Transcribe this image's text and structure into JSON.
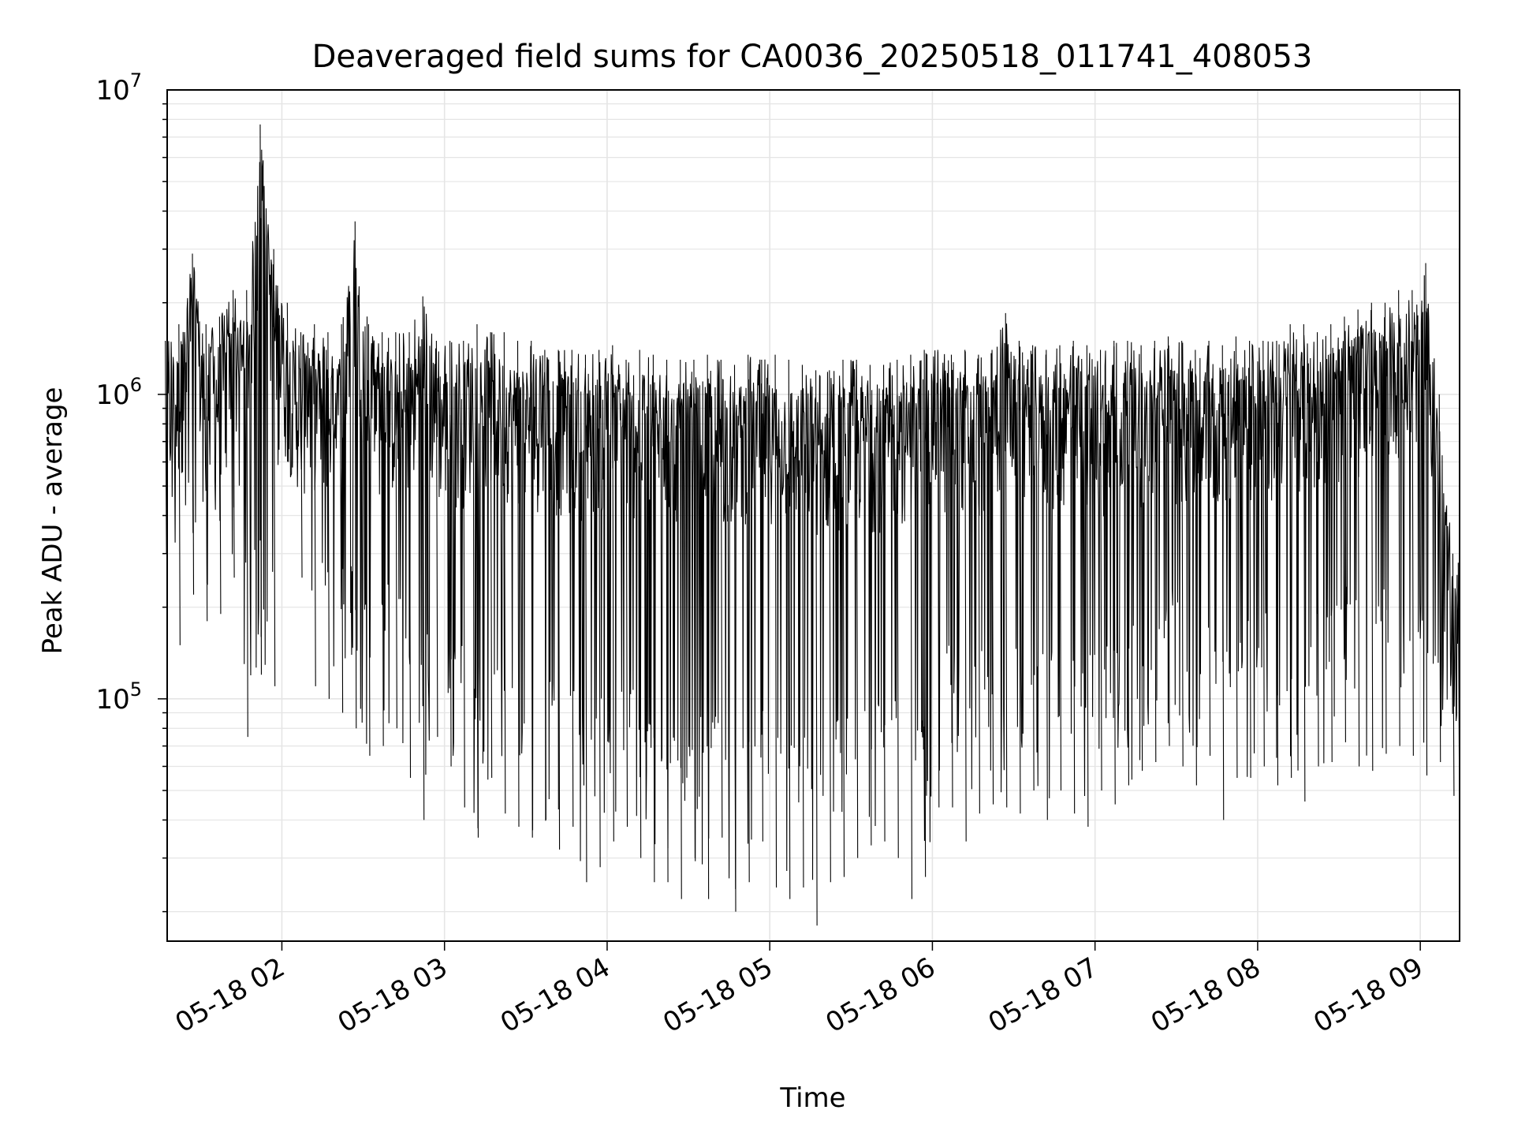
{
  "chart_data": {
    "type": "line",
    "title": "Deaveraged field sums for CA0036_20250518_011741_408053",
    "xlabel": "Time",
    "ylabel": "Peak ADU - average",
    "y_scale": "log",
    "ylim": [
      16000,
      10000000
    ],
    "xlim": [
      "2025-05-18 01:17:41",
      "2025-05-18 09:14:30"
    ],
    "grid": true,
    "line_color": "#000000",
    "grid_color": "#e5e5e5",
    "x_ticks": [
      {
        "label": "05-18 02",
        "value": "2025-05-18 02:00"
      },
      {
        "label": "05-18 03",
        "value": "2025-05-18 03:00"
      },
      {
        "label": "05-18 04",
        "value": "2025-05-18 04:00"
      },
      {
        "label": "05-18 05",
        "value": "2025-05-18 05:00"
      },
      {
        "label": "05-18 06",
        "value": "2025-05-18 06:00"
      },
      {
        "label": "05-18 07",
        "value": "2025-05-18 07:00"
      },
      {
        "label": "05-18 08",
        "value": "2025-05-18 08:00"
      },
      {
        "label": "05-18 09",
        "value": "2025-05-18 09:00"
      }
    ],
    "y_ticks": [
      {
        "base": "10",
        "exp": "5",
        "value": 100000
      },
      {
        "base": "10",
        "exp": "6",
        "value": 1000000
      },
      {
        "base": "10",
        "exp": "7",
        "value": 10000000
      }
    ],
    "series": [
      {
        "x": [
          "01:17",
          "01:22",
          "01:27",
          "01:32",
          "01:37",
          "01:42",
          "01:47",
          "01:52",
          "01:57",
          "02:02",
          "02:07",
          "02:12",
          "02:17",
          "02:22",
          "02:27",
          "02:32",
          "02:37",
          "02:42",
          "02:47",
          "02:52",
          "02:57",
          "03:02",
          "03:07",
          "03:12",
          "03:17",
          "03:22",
          "03:27",
          "03:32",
          "03:37",
          "03:42",
          "03:47",
          "03:52",
          "03:57",
          "04:02",
          "04:07",
          "04:12",
          "04:17",
          "04:22",
          "04:27",
          "04:32",
          "04:37",
          "04:42",
          "04:47",
          "04:52",
          "04:57",
          "05:02",
          "05:07",
          "05:12",
          "05:17",
          "05:22",
          "05:27",
          "05:32",
          "05:37",
          "05:42",
          "05:47",
          "05:52",
          "05:57",
          "06:02",
          "06:07",
          "06:12",
          "06:17",
          "06:22",
          "06:27",
          "06:32",
          "06:37",
          "06:42",
          "06:47",
          "06:52",
          "06:57",
          "07:02",
          "07:07",
          "07:12",
          "07:17",
          "07:22",
          "07:27",
          "07:32",
          "07:37",
          "07:42",
          "07:47",
          "07:52",
          "07:57",
          "08:02",
          "08:07",
          "08:12",
          "08:17",
          "08:22",
          "08:27",
          "08:32",
          "08:37",
          "08:42",
          "08:47",
          "08:52",
          "08:57",
          "09:02",
          "09:07",
          "09:12",
          "09:14"
        ],
        "upper": [
          1500000,
          1700000,
          2900000,
          1700000,
          1800000,
          2200000,
          2200000,
          7700000,
          3000000,
          2000000,
          1600000,
          1700000,
          1600000,
          1700000,
          3700000,
          1700000,
          1600000,
          1600000,
          1600000,
          2100000,
          1500000,
          1500000,
          1500000,
          1700000,
          1600000,
          1600000,
          1500000,
          1500000,
          1400000,
          1400000,
          1400000,
          1350000,
          1400000,
          1450000,
          1300000,
          1400000,
          1350000,
          1300000,
          1300000,
          1300000,
          1350000,
          1300000,
          1250000,
          1350000,
          1300000,
          1350000,
          1300000,
          1250000,
          1200000,
          1200000,
          1300000,
          1300000,
          1250000,
          1250000,
          1300000,
          1350000,
          1400000,
          1400000,
          1350000,
          1400000,
          1350000,
          1400000,
          1850000,
          1500000,
          1450000,
          1400000,
          1450000,
          1500000,
          1450000,
          1400000,
          1500000,
          1500000,
          1450000,
          1500000,
          1550000,
          1500000,
          1400000,
          1500000,
          1450000,
          1550000,
          1500000,
          1500000,
          1500000,
          1700000,
          1700000,
          1600000,
          1700000,
          1800000,
          1900000,
          2000000,
          2000000,
          2200000,
          2200000,
          2700000,
          1000000,
          300000,
          280000
        ],
        "lower": [
          300000,
          150000,
          220000,
          180000,
          190000,
          250000,
          75000,
          120000,
          110000,
          600000,
          250000,
          110000,
          100000,
          90000,
          80000,
          65000,
          70000,
          80000,
          55000,
          40000,
          75000,
          60000,
          44000,
          35000,
          55000,
          42000,
          38000,
          35000,
          40000,
          32000,
          38000,
          25000,
          28000,
          34000,
          38000,
          30000,
          25000,
          25000,
          22000,
          30000,
          22000,
          35000,
          20000,
          25000,
          34000,
          24000,
          22000,
          24000,
          18000,
          25000,
          26000,
          30000,
          33000,
          34000,
          30000,
          22000,
          26000,
          44000,
          44000,
          34000,
          42000,
          45000,
          44000,
          42000,
          50000,
          40000,
          50000,
          42000,
          38000,
          50000,
          45000,
          52000,
          58000,
          62000,
          70000,
          60000,
          52000,
          65000,
          40000,
          55000,
          55000,
          60000,
          52000,
          55000,
          46000,
          60000,
          62000,
          72000,
          60000,
          58000,
          66000,
          70000,
          65000,
          56000,
          62000,
          48000,
          48000
        ]
      }
    ]
  }
}
